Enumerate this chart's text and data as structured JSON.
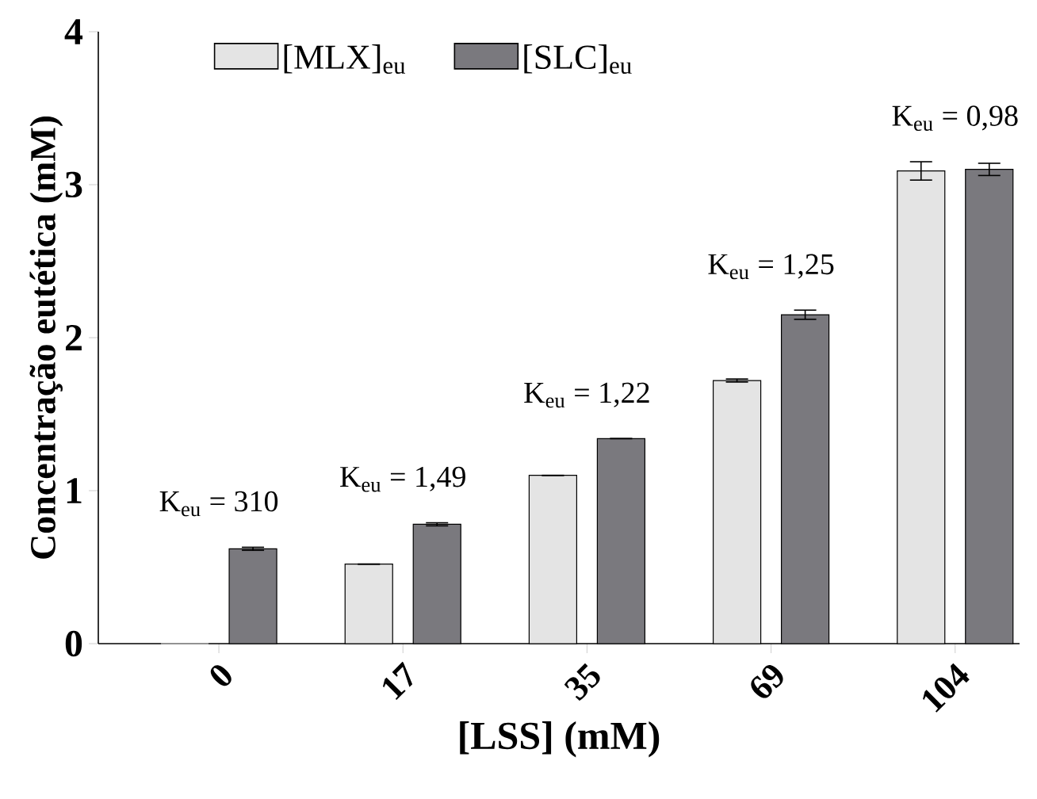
{
  "chart_data": {
    "type": "bar",
    "xlabel": "[LSS] (mM)",
    "ylabel": "Concentração eutética (mM)",
    "categories": [
      "0",
      "17",
      "35",
      "69",
      "104"
    ],
    "series": [
      {
        "name": "[MLX]$_{eu}$",
        "color": "#e4e4e4",
        "values": [
          0,
          0.52,
          1.1,
          1.72,
          3.09
        ],
        "errors": [
          null,
          null,
          null,
          0.01,
          0.06
        ]
      },
      {
        "name": "[SLC]$_{eu}$",
        "color": "#7a797e",
        "values": [
          0.62,
          0.78,
          1.34,
          2.15,
          3.1
        ],
        "errors": [
          0.01,
          0.01,
          null,
          0.03,
          0.04
        ]
      }
    ],
    "annotations": [
      "K$_{eu}$ = 310",
      "K$_{eu}$ = 1,49",
      "K$_{eu}$ = 1,22",
      "K$_{eu}$ = 1,25",
      "K$_{eu}$ = 0,98"
    ],
    "ylim": [
      0,
      4
    ],
    "yticks": [
      0,
      1,
      2,
      3,
      4
    ],
    "legend": "top left",
    "grid": false
  }
}
